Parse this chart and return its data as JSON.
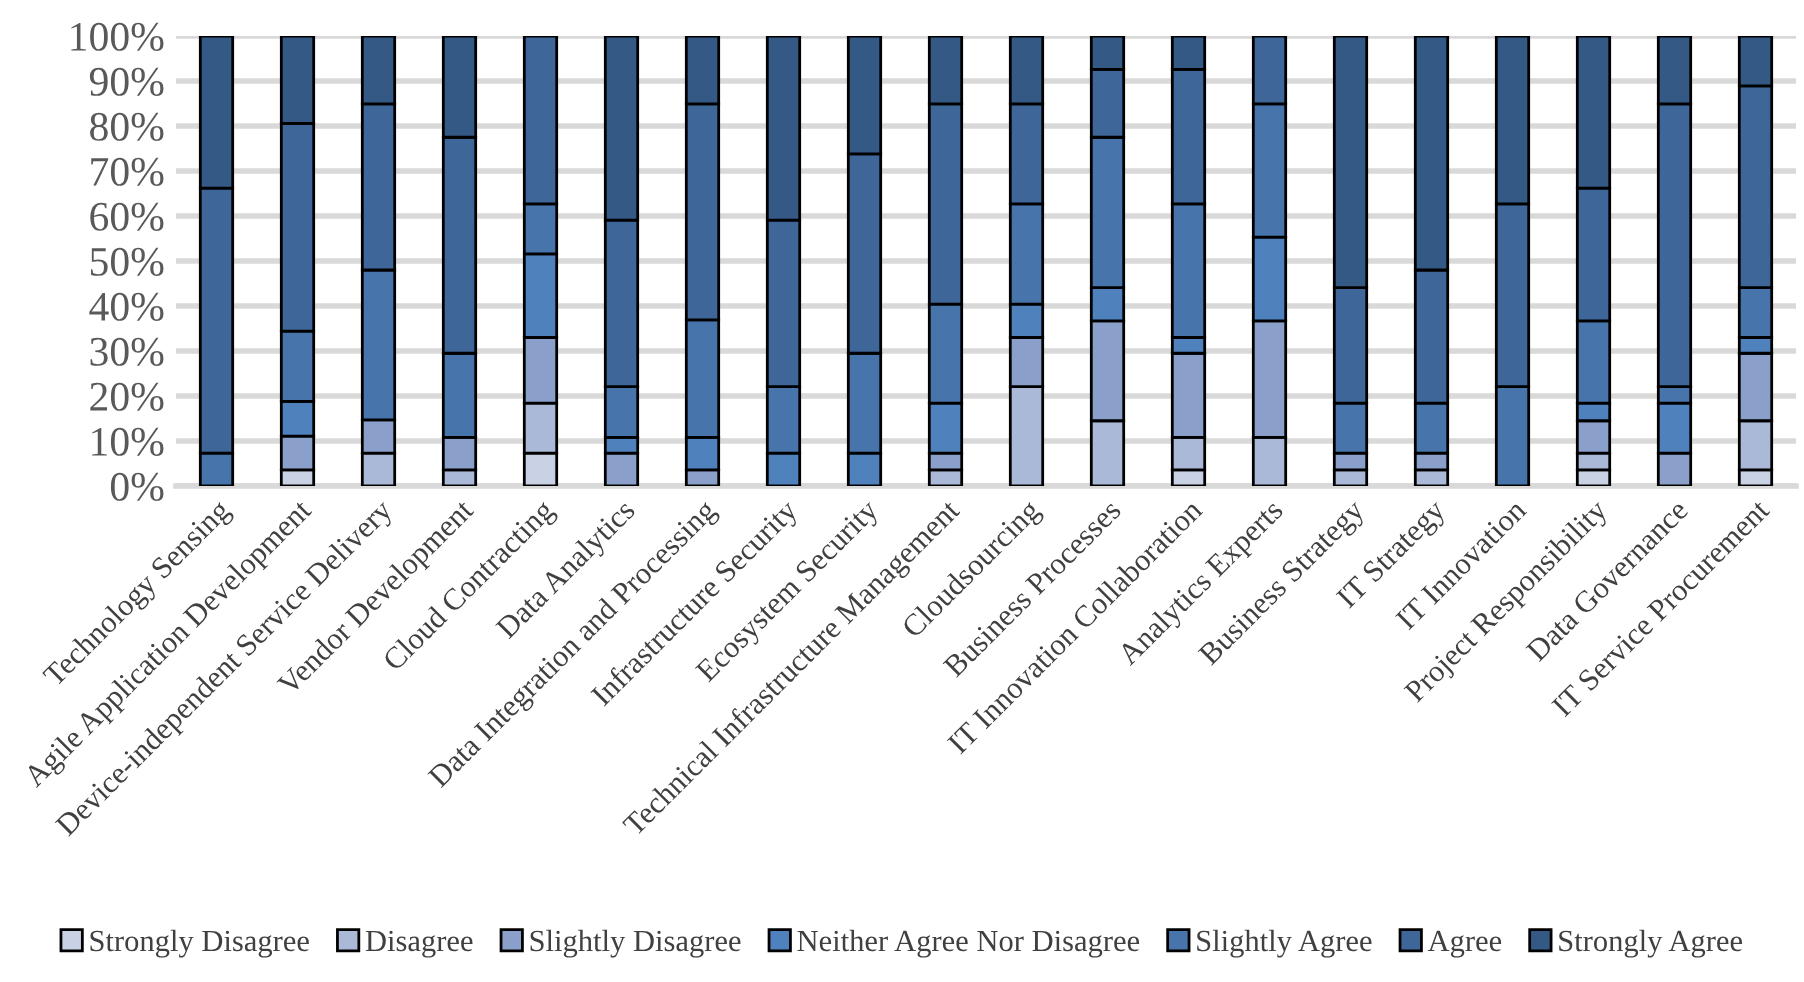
{
  "chart_data": {
    "type": "bar",
    "stacked": true,
    "categories": [
      "Technology Sensing",
      "Agile Application Development",
      "Device-independent Service Delivery",
      "Vendor Development",
      "Cloud Contracting",
      "Data Analytics",
      "Data Integration and Processing",
      "Infrastructure Security",
      "Ecosystem Security",
      "Technical Infrastructure Management",
      "Cloudsourcing",
      "Business Processes",
      "IT Innovation Collaboration",
      "Analytics Experts",
      "Business Strategy",
      "IT Strategy",
      "IT Innovation",
      "Project Responsibility",
      "Data Governance",
      "IT Service Procurement"
    ],
    "series": [
      {
        "name": "Strongly Disagree",
        "color": "#c8d2e4",
        "values": [
          0,
          3.6,
          0,
          0,
          7.3,
          0,
          0,
          0,
          0,
          0,
          0,
          0,
          3.6,
          0,
          0,
          0,
          0,
          3.6,
          0,
          3.6
        ]
      },
      {
        "name": "Disagree",
        "color": "#aab9d7",
        "values": [
          0,
          0,
          7.3,
          3.6,
          11.1,
          0,
          0,
          0,
          0,
          3.6,
          22.1,
          14.5,
          7.2,
          10.8,
          3.6,
          3.6,
          0,
          3.7,
          0,
          10.9
        ]
      },
      {
        "name": "Slightly Disagree",
        "color": "#8aa0cb",
        "values": [
          0,
          7.5,
          7.4,
          7.2,
          14.6,
          7.3,
          3.6,
          0,
          0,
          3.7,
          10.9,
          22.2,
          18.7,
          25.9,
          3.7,
          3.7,
          0,
          7.2,
          7.3,
          15.0
        ]
      },
      {
        "name": "Neither Agree Nor Disagree",
        "color": "#4f81bd",
        "values": [
          0,
          7.7,
          0,
          0,
          18.6,
          3.5,
          7.2,
          7.3,
          7.3,
          11.1,
          7.4,
          7.4,
          3.5,
          18.6,
          0,
          0,
          0,
          3.9,
          11.1,
          3.5
        ]
      },
      {
        "name": "Slightly Agree",
        "color": "#4774ab",
        "values": [
          7.3,
          15.6,
          33.3,
          18.7,
          11.1,
          11.3,
          26.1,
          14.8,
          22.2,
          22.0,
          22.3,
          33.4,
          29.7,
          29.6,
          11.1,
          11.1,
          22.1,
          18.3,
          3.7,
          11.1
        ]
      },
      {
        "name": "Agree",
        "color": "#3e6699",
        "values": [
          58.9,
          46.2,
          36.9,
          48.0,
          37.3,
          37.0,
          48.0,
          37.0,
          44.3,
          44.5,
          22.2,
          15.1,
          29.9,
          15.1,
          25.7,
          29.6,
          40.6,
          29.5,
          62.8,
          44.8
        ]
      },
      {
        "name": "Strongly Agree",
        "color": "#345985",
        "values": [
          33.8,
          19.4,
          15.1,
          22.5,
          0,
          40.9,
          15.1,
          40.9,
          26.2,
          15.1,
          15.1,
          7.4,
          7.4,
          0,
          55.9,
          52.0,
          37.3,
          33.8,
          15.1,
          11.1
        ]
      }
    ],
    "ylim": [
      0,
      100
    ],
    "yticks": [
      {
        "value": 0,
        "label": "0%"
      },
      {
        "value": 10,
        "label": "10%"
      },
      {
        "value": 20,
        "label": "20%"
      },
      {
        "value": 30,
        "label": "30%"
      },
      {
        "value": 40,
        "label": "40%"
      },
      {
        "value": 50,
        "label": "50%"
      },
      {
        "value": 60,
        "label": "60%"
      },
      {
        "value": 70,
        "label": "70%"
      },
      {
        "value": 80,
        "label": "80%"
      },
      {
        "value": 90,
        "label": "90%"
      },
      {
        "value": 100,
        "label": "100%"
      }
    ],
    "grid": "y",
    "legend": "bottom"
  }
}
